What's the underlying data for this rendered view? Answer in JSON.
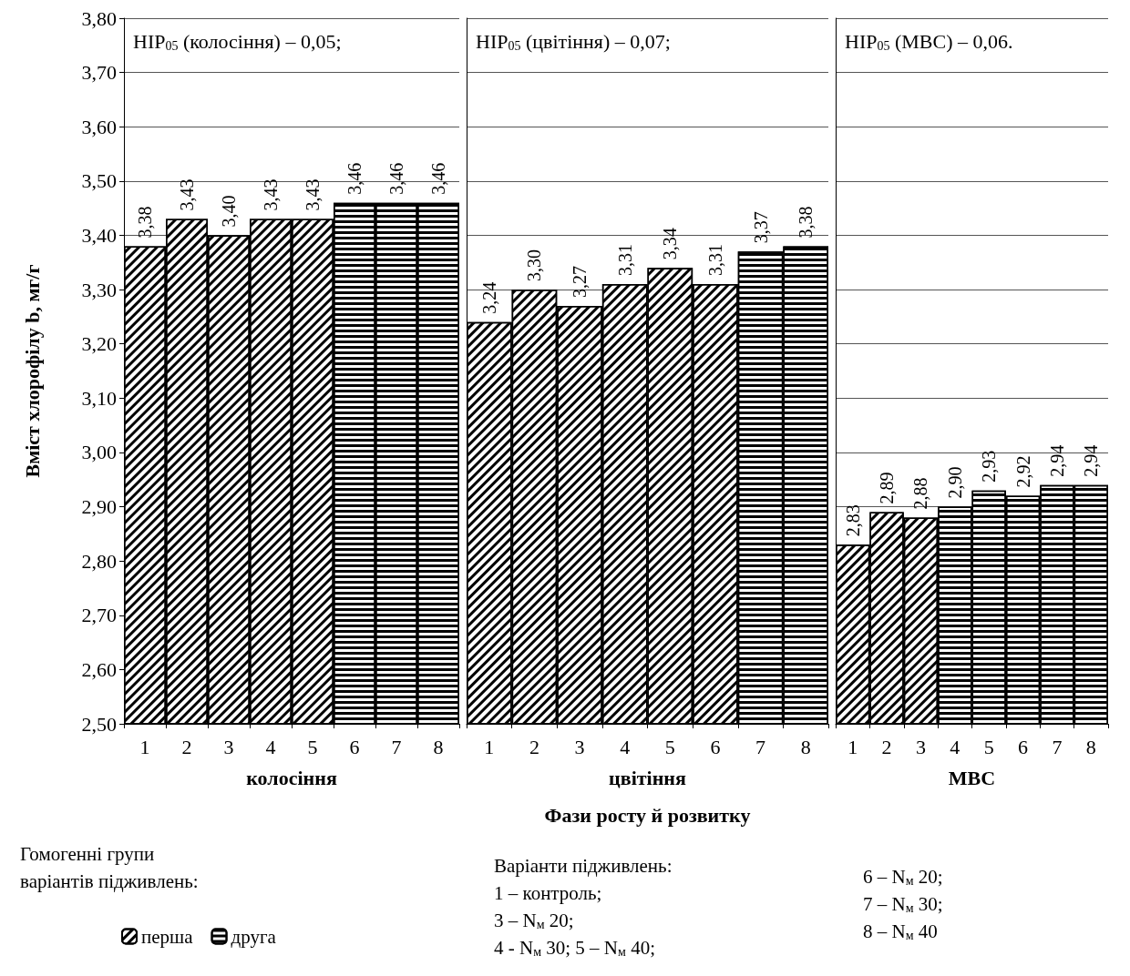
{
  "chart_data": [
    {
      "type": "bar",
      "stacked": true,
      "categories": [
        "1",
        "2",
        "3",
        "4",
        "5",
        "6",
        "7",
        "8"
      ],
      "ylabel": "Вміст хлорофілу b, мг/г",
      "xlabel": "колосіння",
      "ylim": [
        2.5,
        3.8
      ],
      "yticks": [
        {
          "value": 2.5,
          "label": "2,50"
        },
        {
          "value": 2.6,
          "label": "2,60"
        },
        {
          "value": 2.7,
          "label": "2,70"
        },
        {
          "value": 2.8,
          "label": "2,80"
        },
        {
          "value": 2.9,
          "label": "2,90"
        },
        {
          "value": 3.0,
          "label": "3,00"
        },
        {
          "value": 3.1,
          "label": "3,10"
        },
        {
          "value": 3.2,
          "label": "3,20"
        },
        {
          "value": 3.3,
          "label": "3,30"
        },
        {
          "value": 3.4,
          "label": "3,40"
        },
        {
          "value": 3.5,
          "label": "3,50"
        },
        {
          "value": 3.6,
          "label": "3,60"
        },
        {
          "value": 3.7,
          "label": "3,70"
        },
        {
          "value": 3.8,
          "label": "3,80"
        }
      ],
      "grid": "y",
      "legend": "bottom",
      "legend_title": "Гомогенні групи варіантів підживлень:",
      "series": [
        {
          "name": "перша",
          "color": "#000000",
          "values": [
            3.38,
            3.43,
            3.4,
            3.43,
            3.43,
            null,
            null,
            null
          ],
          "value_labels": [
            "3,38",
            "3,43",
            "3,40",
            "3,43",
            "3,43",
            null,
            null,
            null
          ]
        },
        {
          "name": "друга",
          "color": "#000000",
          "values": [
            null,
            null,
            null,
            null,
            null,
            3.46,
            3.46,
            3.46
          ],
          "value_labels": [
            null,
            null,
            null,
            null,
            null,
            "3,46",
            "3,46",
            "3,46"
          ]
        }
      ],
      "annotations": [
        "НІР$_{05}$ (колосіння) – 0,05;"
      ]
    },
    {
      "type": "bar",
      "stacked": true,
      "categories": [
        "1",
        "2",
        "3",
        "4",
        "5",
        "6",
        "7",
        "8"
      ],
      "xlabel": "цвітіння",
      "ylim": [
        2.5,
        3.8
      ],
      "yticks": [
        2.5,
        2.6,
        2.7,
        2.8,
        2.9,
        3.0,
        3.1,
        3.2,
        3.3,
        3.4,
        3.5,
        3.6,
        3.7,
        3.8
      ],
      "grid": "y",
      "tick_labels": "x",
      "series": [
        {
          "color": "#000000",
          "values": [
            3.24,
            3.3,
            3.27,
            3.31,
            3.34,
            3.31,
            null,
            null
          ],
          "value_labels": [
            "3,24",
            "3,30",
            "3,27",
            "3,31",
            "3,34",
            "3,31",
            null,
            null
          ]
        },
        {
          "color": "#000000",
          "values": [
            null,
            null,
            null,
            null,
            null,
            null,
            3.37,
            3.38
          ],
          "value_labels": [
            null,
            null,
            null,
            null,
            null,
            null,
            "3,37",
            "3,38"
          ]
        }
      ],
      "annotations": [
        "НІР$_{05}$ (цвітіння) – 0,07;",
        "Фази росту й розвитку",
        "Варіанти підживлень:",
        "1 – контроль;",
        "3 – N$_{м}$ 20;",
        "4 - N$_{м}$ 30; 5 – N$_{м}$ 40;"
      ]
    },
    {
      "type": "bar",
      "stacked": true,
      "categories": [
        "1",
        "2",
        "3",
        "4",
        "5",
        "6",
        "7",
        "8"
      ],
      "xlabel": "МВС",
      "ylim": [
        2.5,
        3.8
      ],
      "yticks": [
        2.5,
        2.6,
        2.7,
        2.8,
        2.9,
        3.0,
        3.1,
        3.2,
        3.3,
        3.4,
        3.5,
        3.6,
        3.7,
        3.8
      ],
      "grid": "y",
      "tick_labels": "x",
      "series": [
        {
          "color": "#000000",
          "values": [
            2.83,
            2.89,
            2.88,
            null,
            null,
            null,
            null,
            null
          ],
          "value_labels": [
            "2,83",
            "2,89",
            "2,88",
            null,
            null,
            null,
            null,
            null
          ]
        },
        {
          "color": "#000000",
          "values": [
            null,
            null,
            null,
            2.9,
            2.93,
            2.92,
            2.94,
            2.94
          ],
          "value_labels": [
            null,
            null,
            null,
            "2,90",
            "2,93",
            "2,92",
            "2,94",
            "2,94"
          ]
        }
      ],
      "annotations": [
        "НІР$_{05}$ (МВС) – 0,06.",
        "6 – N$_{м}$ 20;",
        "7 – N$_{м}$ 30;",
        "8 – N$_{м}$ 40"
      ]
    }
  ]
}
